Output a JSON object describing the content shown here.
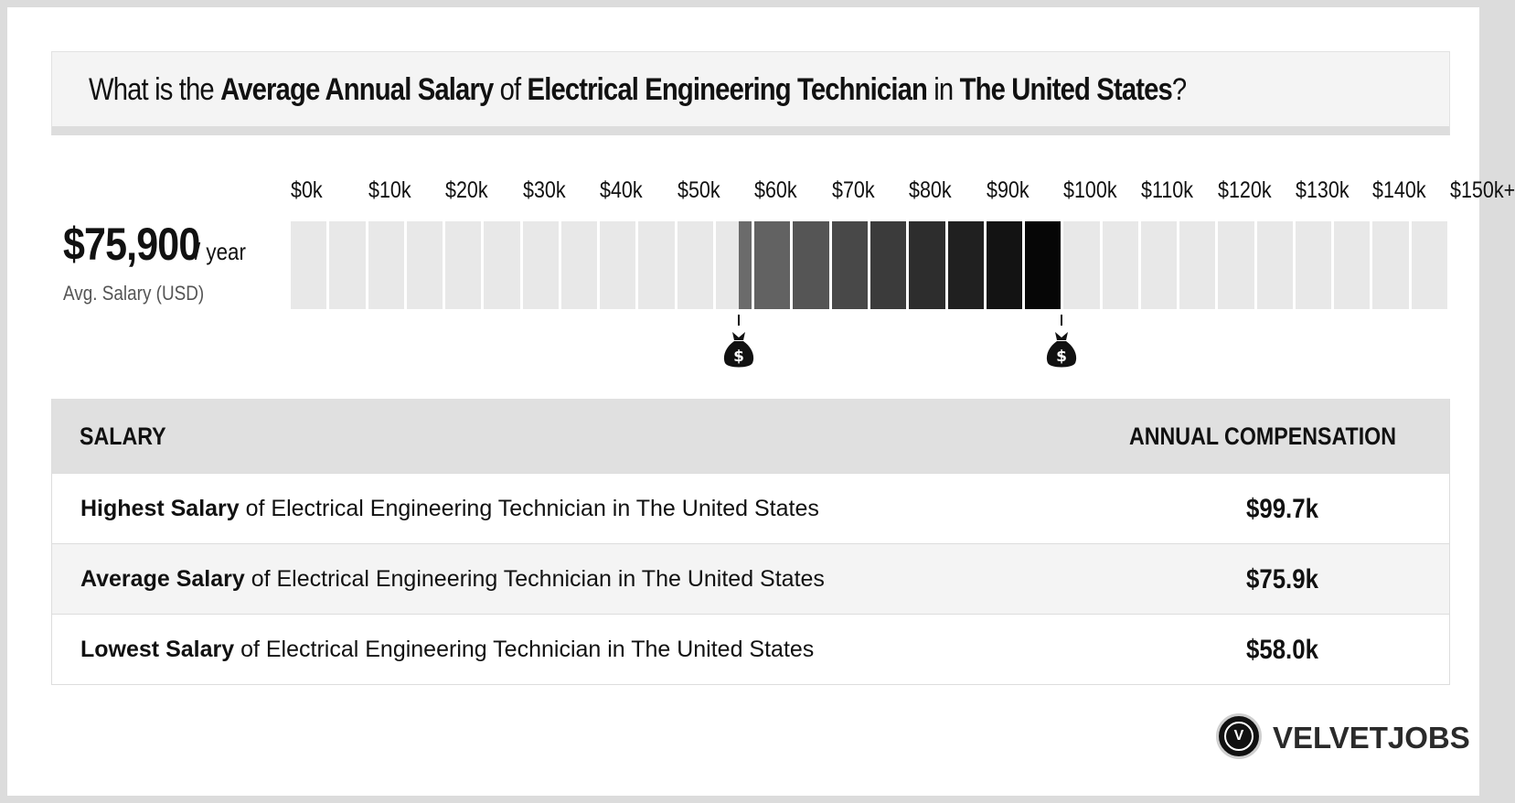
{
  "question": {
    "part1": "What is the ",
    "bold1": "Average Annual Salary",
    "part2": " of ",
    "bold2": "Electrical Engineering Technician",
    "part3": " in ",
    "bold3": "The United States",
    "part4": "?"
  },
  "summary": {
    "value": "$75,900",
    "unit": "/ year",
    "label": "Avg. Salary (USD)"
  },
  "chart_data": {
    "type": "bar",
    "tick_labels": [
      "$0k",
      "$10k",
      "$20k",
      "$30k",
      "$40k",
      "$50k",
      "$60k",
      "$70k",
      "$80k",
      "$90k",
      "$100k",
      "$110k",
      "$120k",
      "$130k",
      "$140k",
      "$150k+"
    ],
    "x_range": [
      0,
      150
    ],
    "x_unit": "thousand USD",
    "range_low": 58.0,
    "range_high": 99.7,
    "average": 75.9,
    "colors": {
      "inactive": "#e8e8e8",
      "range_start": "#6e6e6e",
      "range_end": "#000000"
    }
  },
  "table": {
    "headers": {
      "salary": "SALARY",
      "compensation": "ANNUAL COMPENSATION"
    },
    "rows": [
      {
        "bold": "Highest Salary",
        "rest": " of Electrical Engineering Technician in The United States",
        "value": "$99.7k"
      },
      {
        "bold": "Average Salary",
        "rest": " of Electrical Engineering Technician in The United States",
        "value": "$75.9k"
      },
      {
        "bold": "Lowest Salary",
        "rest": " of Electrical Engineering Technician in The United States",
        "value": "$58.0k"
      }
    ]
  },
  "brand": {
    "logo_letter": "V",
    "name": "VELVETJOBS"
  },
  "icons": {
    "marker": "money-bag-icon"
  }
}
